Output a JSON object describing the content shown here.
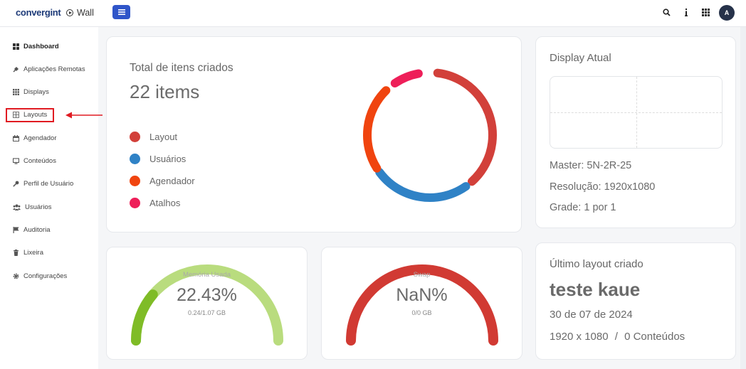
{
  "header": {
    "logo_text": "convergint",
    "app_name": "Wall",
    "avatar_initial": "A",
    "icons": [
      "menu-icon",
      "search-icon",
      "info-icon",
      "grid-icon"
    ]
  },
  "sidebar": {
    "items": [
      {
        "label": "Dashboard",
        "icon": "dashboard-icon"
      },
      {
        "label": "Aplicações Remotas",
        "icon": "plug-icon"
      },
      {
        "label": "Displays",
        "icon": "displays-grid-icon"
      },
      {
        "label": "Layouts",
        "icon": "layout-icon"
      },
      {
        "label": "Agendador",
        "icon": "calendar-icon"
      },
      {
        "label": "Conteúdos",
        "icon": "monitor-icon"
      },
      {
        "label": "Perfil de Usuário",
        "icon": "key-icon"
      },
      {
        "label": "Usuários",
        "icon": "users-icon"
      },
      {
        "label": "Auditoria",
        "icon": "flag-icon"
      },
      {
        "label": "Lixeira",
        "icon": "trash-icon"
      },
      {
        "label": "Configurações",
        "icon": "gear-icon"
      }
    ]
  },
  "total_card": {
    "title": "Total de itens criados",
    "count": "22 items",
    "legend": [
      {
        "label": "Layout",
        "color": "#d2403a"
      },
      {
        "label": "Usuários",
        "color": "#2f82c6"
      },
      {
        "label": "Agendador",
        "color": "#f0440f"
      },
      {
        "label": "Atalhos",
        "color": "#ee1f59"
      }
    ]
  },
  "display_card": {
    "title": "Display Atual",
    "master": "Master: 5N-2R-25",
    "resolution": "Resolução: 1920x1080",
    "grid": "Grade: 1 por 1"
  },
  "memory_gauge": {
    "label": "Memória Usada",
    "value": "22.43%",
    "sub": "0.24/1.07 GB",
    "fraction": 0.2243,
    "fill_color": "#7fbc27",
    "track_color": "#b9dc7e"
  },
  "swap_gauge": {
    "label": "Swap",
    "value": "NaN%",
    "sub": "0/0 GB",
    "fraction": 1,
    "fill_color": "#d13a33",
    "track_color": "#d13a33"
  },
  "last_layout_card": {
    "title": "Último layout criado",
    "name": "teste kaue",
    "date": "30 de 07 de 2024",
    "resolution": "1920 x 1080",
    "separator": "/",
    "contents": "0 Conteúdos"
  }
}
